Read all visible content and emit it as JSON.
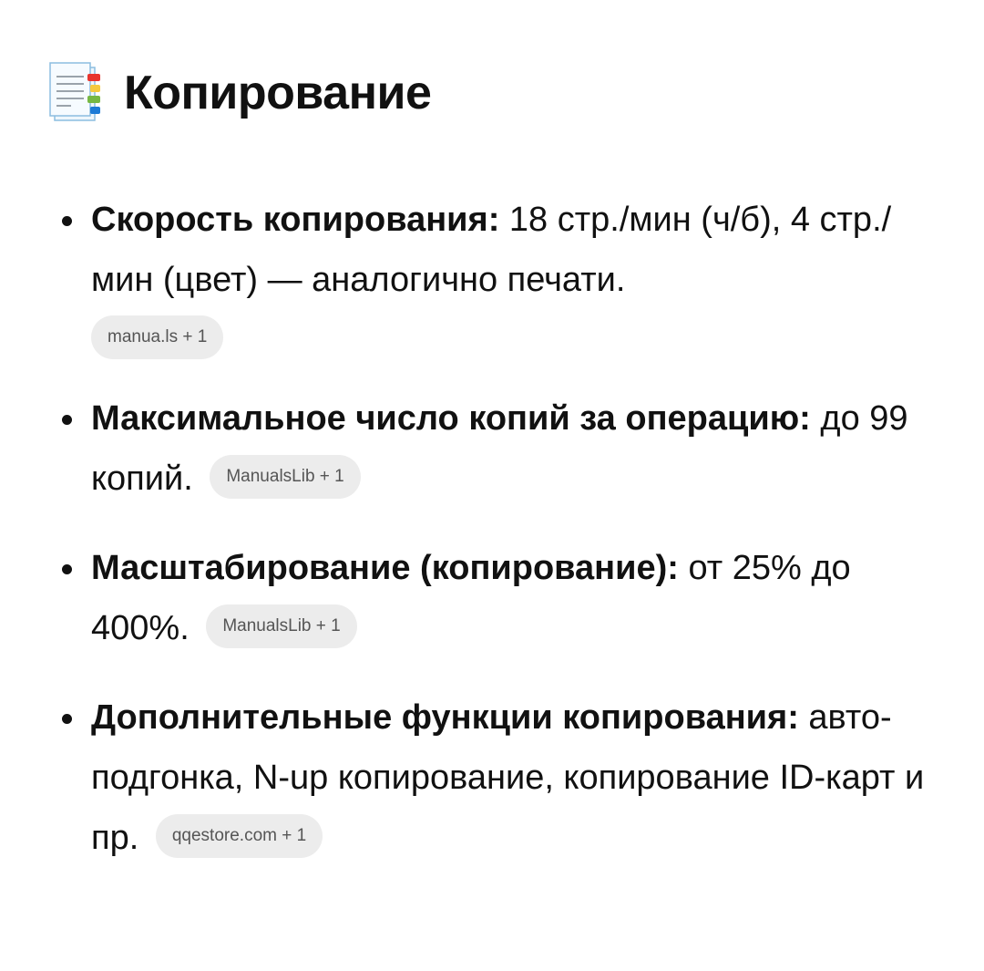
{
  "section": {
    "title": "Копирование",
    "icon": "bookmark-tabs-document-icon"
  },
  "items": [
    {
      "label": "Скорость копирования:",
      "text": " 18 стр./мин (ч/б), 4 стр./мин (цвет) — аналогично печати.",
      "source": "manua.ls + 1"
    },
    {
      "label": "Максимальное число копий за операцию:",
      "text": " до 99 копий.",
      "source": "ManualsLib + 1"
    },
    {
      "label": "Масштабирование (копирование):",
      "text": " от 25% до 400%.",
      "source": "ManualsLib + 1"
    },
    {
      "label": "Дополнительные функции копирования:",
      "text": " авто-подгонка, N-up копирование, копирование ID-карт и пр.",
      "source": "qqestore.com + 1"
    }
  ]
}
